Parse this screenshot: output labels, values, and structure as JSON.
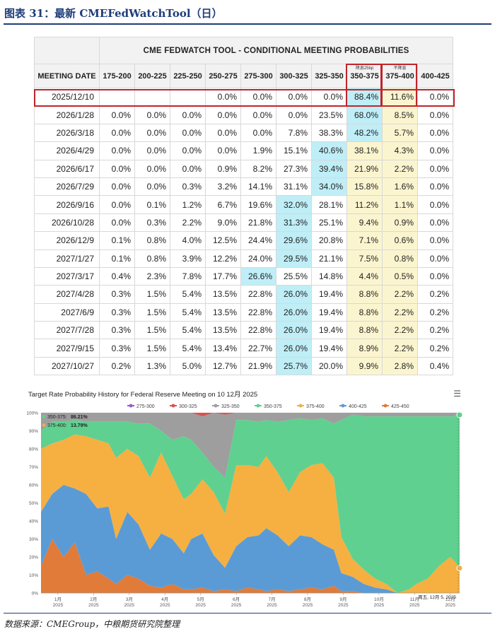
{
  "figure": {
    "title": "图表 31：最新 CMEFedWatchTool（日）",
    "source": "数据来源：CMEGroup，中粮期货研究院整理"
  },
  "table": {
    "title": "CME FEDWATCH TOOL - CONDITIONAL MEETING PROBABILITIES",
    "date_header": "MEETING DATE",
    "ranges": [
      "175-200",
      "200-225",
      "225-250",
      "250-275",
      "275-300",
      "300-325",
      "325-350",
      "350-375",
      "375-400",
      "400-425"
    ],
    "subnotes": {
      "350-375": "降息25bp",
      "375-400": "不降息"
    },
    "rows": [
      {
        "date": "2025/12/10",
        "v": [
          "",
          "",
          "",
          "0.0%",
          "0.0%",
          "0.0%",
          "0.0%",
          "88.4%",
          "11.6%",
          "0.0%"
        ],
        "hl": 7
      },
      {
        "date": "2026/1/28",
        "v": [
          "0.0%",
          "0.0%",
          "0.0%",
          "0.0%",
          "0.0%",
          "0.0%",
          "23.5%",
          "68.0%",
          "8.5%",
          "0.0%"
        ],
        "hl": 7
      },
      {
        "date": "2026/3/18",
        "v": [
          "0.0%",
          "0.0%",
          "0.0%",
          "0.0%",
          "0.0%",
          "7.8%",
          "38.3%",
          "48.2%",
          "5.7%",
          "0.0%"
        ],
        "hl": 7
      },
      {
        "date": "2026/4/29",
        "v": [
          "0.0%",
          "0.0%",
          "0.0%",
          "0.0%",
          "1.9%",
          "15.1%",
          "40.6%",
          "38.1%",
          "4.3%",
          "0.0%"
        ],
        "hl": 6
      },
      {
        "date": "2026/6/17",
        "v": [
          "0.0%",
          "0.0%",
          "0.0%",
          "0.9%",
          "8.2%",
          "27.3%",
          "39.4%",
          "21.9%",
          "2.2%",
          "0.0%"
        ],
        "hl": 6
      },
      {
        "date": "2026/7/29",
        "v": [
          "0.0%",
          "0.0%",
          "0.3%",
          "3.2%",
          "14.1%",
          "31.1%",
          "34.0%",
          "15.8%",
          "1.6%",
          "0.0%"
        ],
        "hl": 6
      },
      {
        "date": "2026/9/16",
        "v": [
          "0.0%",
          "0.1%",
          "1.2%",
          "6.7%",
          "19.6%",
          "32.0%",
          "28.1%",
          "11.2%",
          "1.1%",
          "0.0%"
        ],
        "hl": 5
      },
      {
        "date": "2026/10/28",
        "v": [
          "0.0%",
          "0.3%",
          "2.2%",
          "9.0%",
          "21.8%",
          "31.3%",
          "25.1%",
          "9.4%",
          "0.9%",
          "0.0%"
        ],
        "hl": 5
      },
      {
        "date": "2026/12/9",
        "v": [
          "0.1%",
          "0.8%",
          "4.0%",
          "12.5%",
          "24.4%",
          "29.6%",
          "20.8%",
          "7.1%",
          "0.6%",
          "0.0%"
        ],
        "hl": 5
      },
      {
        "date": "2027/1/27",
        "v": [
          "0.1%",
          "0.8%",
          "3.9%",
          "12.2%",
          "24.0%",
          "29.5%",
          "21.1%",
          "7.5%",
          "0.8%",
          "0.0%"
        ],
        "hl": 5
      },
      {
        "date": "2027/3/17",
        "v": [
          "0.4%",
          "2.3%",
          "7.8%",
          "17.7%",
          "26.6%",
          "25.5%",
          "14.8%",
          "4.4%",
          "0.5%",
          "0.0%"
        ],
        "hl": 4
      },
      {
        "date": "2027/4/28",
        "v": [
          "0.3%",
          "1.5%",
          "5.4%",
          "13.5%",
          "22.8%",
          "26.0%",
          "19.4%",
          "8.8%",
          "2.2%",
          "0.2%"
        ],
        "hl": 5
      },
      {
        "date": "2027/6/9",
        "v": [
          "0.3%",
          "1.5%",
          "5.4%",
          "13.5%",
          "22.8%",
          "26.0%",
          "19.4%",
          "8.8%",
          "2.2%",
          "0.2%"
        ],
        "hl": 5
      },
      {
        "date": "2027/7/28",
        "v": [
          "0.3%",
          "1.5%",
          "5.4%",
          "13.5%",
          "22.8%",
          "26.0%",
          "19.4%",
          "8.8%",
          "2.2%",
          "0.2%"
        ],
        "hl": 5
      },
      {
        "date": "2027/9/15",
        "v": [
          "0.3%",
          "1.5%",
          "5.4%",
          "13.4%",
          "22.7%",
          "26.0%",
          "19.4%",
          "8.9%",
          "2.2%",
          "0.2%"
        ],
        "hl": 5
      },
      {
        "date": "2027/10/27",
        "v": [
          "0.2%",
          "1.3%",
          "5.0%",
          "12.7%",
          "21.9%",
          "25.7%",
          "20.0%",
          "9.9%",
          "2.8%",
          "0.4%"
        ],
        "hl": 5
      }
    ]
  },
  "chart_data": {
    "type": "area",
    "title": "Target Rate Probability History for Federal Reserve Meeting on 10 12月 2025",
    "legend": [
      {
        "name": "275-300",
        "color": "#9b59d0"
      },
      {
        "name": "300-325",
        "color": "#d9534f"
      },
      {
        "name": "325-350",
        "color": "#9e9e9e"
      },
      {
        "name": "350-375",
        "color": "#5fd08f"
      },
      {
        "name": "375-400",
        "color": "#f5b041"
      },
      {
        "name": "400-425",
        "color": "#5b9bd5"
      },
      {
        "name": "425-450",
        "color": "#e07b39"
      }
    ],
    "stack_order": [
      "425-450",
      "400-425",
      "375-400",
      "350-375",
      "325-350",
      "300-325",
      "275-300"
    ],
    "x_ticks": [
      {
        "m": "1月",
        "y": "2025"
      },
      {
        "m": "2月",
        "y": "2025"
      },
      {
        "m": "3月",
        "y": "2025"
      },
      {
        "m": "4月",
        "y": "2025"
      },
      {
        "m": "5月",
        "y": "2025"
      },
      {
        "m": "6月",
        "y": "2025"
      },
      {
        "m": "7月",
        "y": "2025"
      },
      {
        "m": "8月",
        "y": "2025"
      },
      {
        "m": "9月",
        "y": "2025"
      },
      {
        "m": "10月",
        "y": "2025"
      },
      {
        "m": "11月",
        "y": "2025"
      },
      {
        "m": "12月",
        "y": "2025"
      }
    ],
    "y_ticks": [
      "0%",
      "10%",
      "20%",
      "30%",
      "40%",
      "50%",
      "60%",
      "70%",
      "80%",
      "90%",
      "100%"
    ],
    "ylim": [
      0,
      100
    ],
    "tooltip": [
      {
        "label": "350-375:",
        "value": "86.21%",
        "color": "#5fd08f"
      },
      {
        "label": "375-400:",
        "value": "13.79%",
        "color": "#f5b041"
      }
    ],
    "date_label": "周五, 12月 5, 2025",
    "t": [
      0,
      0.3,
      0.6,
      0.9,
      1.2,
      1.5,
      1.8,
      2.0,
      2.3,
      2.6,
      2.9,
      3.2,
      3.5,
      3.8,
      4.0,
      4.3,
      4.6,
      4.9,
      5.2,
      5.5,
      5.8,
      6.0,
      6.3,
      6.6,
      6.9,
      7.2,
      7.5,
      7.8,
      8.0,
      8.3,
      8.6,
      8.9,
      9.2,
      9.5,
      9.8,
      10.0,
      10.3,
      10.6,
      10.9,
      11.0,
      11.15
    ],
    "series": [
      {
        "name": "425-450",
        "values": [
          15,
          30,
          20,
          28,
          10,
          12,
          8,
          5,
          10,
          8,
          4,
          3,
          5,
          2,
          2,
          3,
          1,
          2,
          1,
          3,
          2,
          1,
          2,
          1,
          2,
          3,
          2,
          4,
          1,
          1,
          0,
          0,
          0,
          0,
          0,
          0,
          0,
          0,
          0,
          0,
          0
        ]
      },
      {
        "name": "400-425",
        "values": [
          30,
          25,
          40,
          30,
          45,
          35,
          40,
          25,
          35,
          30,
          20,
          30,
          25,
          20,
          28,
          30,
          20,
          12,
          25,
          28,
          30,
          35,
          30,
          25,
          30,
          28,
          25,
          20,
          10,
          8,
          5,
          3,
          2,
          0,
          0,
          0,
          0,
          0,
          0,
          0,
          0
        ]
      },
      {
        "name": "375-400",
        "values": [
          35,
          28,
          25,
          30,
          32,
          38,
          35,
          45,
          35,
          38,
          40,
          45,
          35,
          30,
          25,
          30,
          35,
          30,
          45,
          40,
          38,
          40,
          35,
          30,
          35,
          40,
          45,
          40,
          20,
          10,
          8,
          5,
          3,
          0,
          2,
          5,
          8,
          15,
          20,
          18,
          13.79
        ]
      },
      {
        "name": "350-375",
        "values": [
          10,
          12,
          10,
          8,
          8,
          10,
          12,
          20,
          15,
          18,
          30,
          12,
          20,
          35,
          30,
          15,
          14,
          20,
          25,
          25,
          25,
          20,
          28,
          40,
          30,
          25,
          25,
          30,
          65,
          80,
          85,
          90,
          93,
          98,
          96,
          93,
          90,
          83,
          78,
          80,
          86.21
        ]
      },
      {
        "name": "325-350",
        "values": [
          10,
          5,
          5,
          4,
          5,
          5,
          5,
          5,
          5,
          6,
          6,
          10,
          15,
          13,
          15,
          20,
          30,
          35,
          4,
          4,
          5,
          4,
          5,
          4,
          3,
          4,
          3,
          6,
          4,
          1,
          2,
          2,
          2,
          2,
          2,
          2,
          2,
          2,
          2,
          2,
          0
        ]
      },
      {
        "name": "300-325",
        "values": [
          0,
          0,
          0,
          0,
          0,
          0,
          0,
          0,
          0,
          0,
          0,
          0,
          0,
          0,
          0,
          2,
          0,
          1,
          0,
          0,
          0,
          0,
          0,
          0,
          0,
          0,
          0,
          0,
          0,
          0,
          0,
          0,
          0,
          0,
          0,
          0,
          0,
          0,
          0,
          0,
          0
        ]
      },
      {
        "name": "275-300",
        "values": [
          0,
          0,
          0,
          0,
          0,
          0,
          0,
          0,
          0,
          0,
          0,
          0,
          0,
          0,
          0,
          0,
          0,
          0,
          0,
          0,
          0,
          0,
          0,
          0,
          0,
          0,
          0,
          0,
          0,
          0,
          0,
          0,
          0,
          0,
          0,
          0,
          0,
          0,
          0,
          0,
          0
        ]
      }
    ]
  }
}
